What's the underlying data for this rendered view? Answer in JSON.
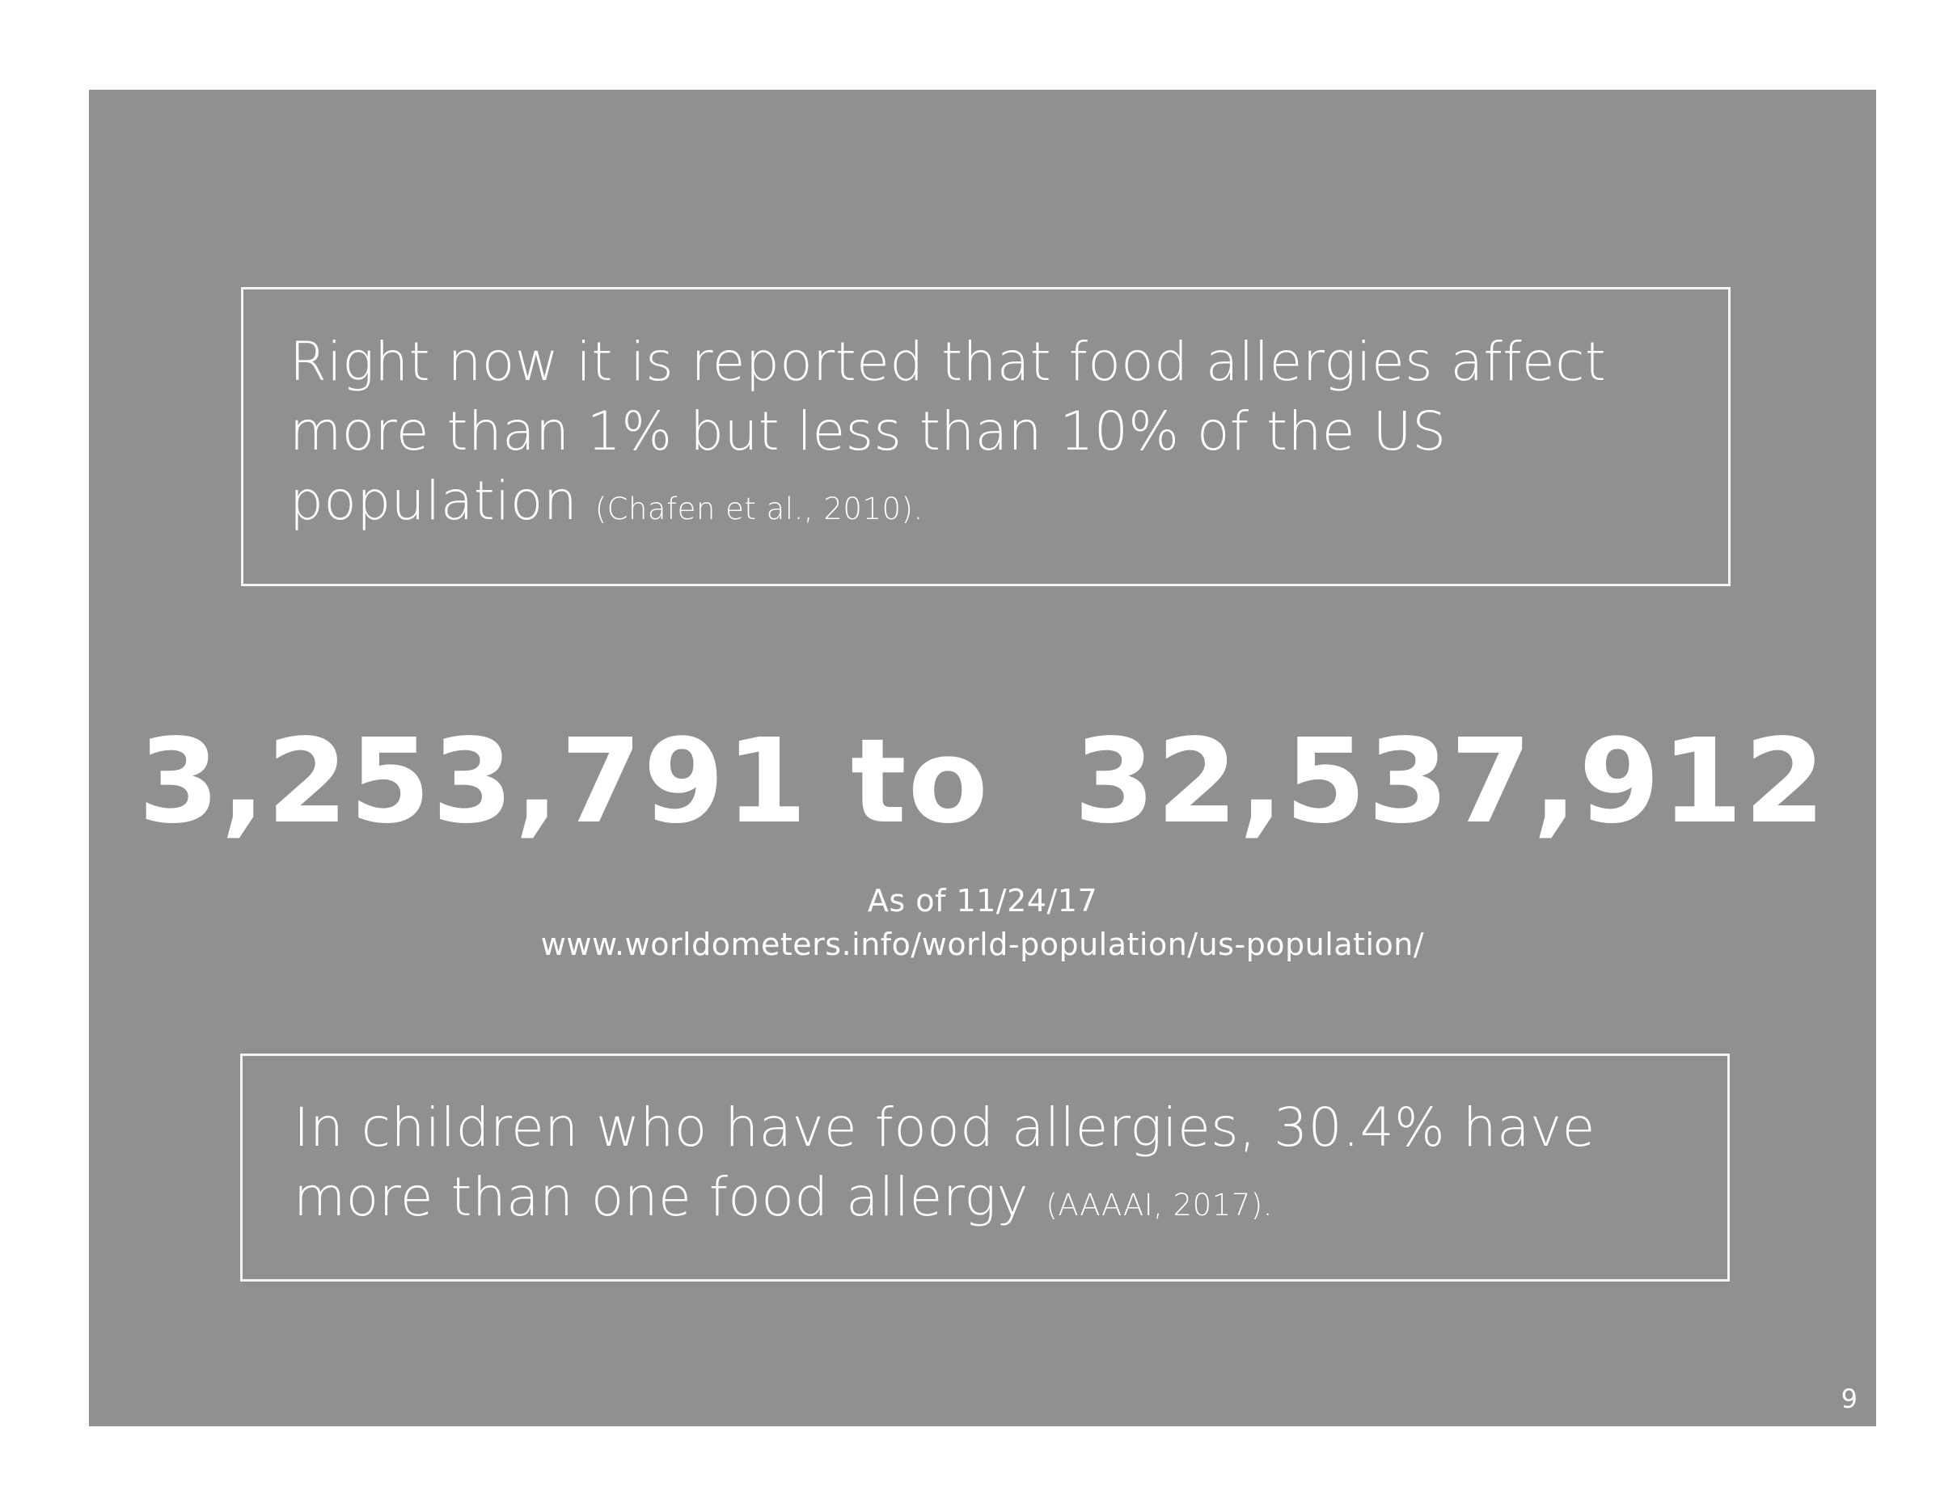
{
  "top_quote": {
    "text": "Right now it is reported that food allergies affect more than 1% but less than 10% of the US population",
    "citation": "(Chafen et al., 2010)."
  },
  "population_range": {
    "low": "3,253,791",
    "connector": "to",
    "high": "32,537,912"
  },
  "source": {
    "date": "As of 11/24/17",
    "url": "www.worldometers.info/world-population/us-population/"
  },
  "bottom_quote": {
    "text": "In children who have food allergies, 30.4% have more than one food allergy",
    "citation": "(AAAAI, 2017)."
  },
  "page_number": "9"
}
